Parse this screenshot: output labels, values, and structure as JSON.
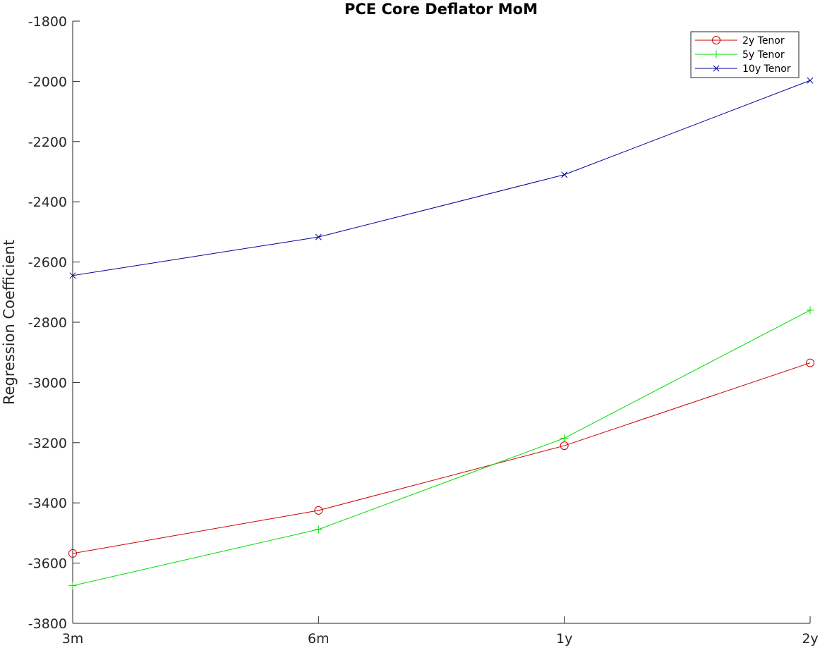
{
  "chart_data": {
    "type": "line",
    "title": "PCE Core Deflator MoM",
    "xlabel": "",
    "ylabel": "Regression Coefficient",
    "categories": [
      "3m",
      "6m",
      "1y",
      "2y"
    ],
    "ylim": [
      -3800,
      -1800
    ],
    "yticks": [
      -3800,
      -3600,
      -3400,
      -3200,
      -3000,
      -2800,
      -2600,
      -2400,
      -2200,
      -2000,
      -1800
    ],
    "grid": false,
    "legend": "top-right",
    "series": [
      {
        "name": "2y Tenor",
        "color": "#cc0000",
        "marker": "circle",
        "values": [
          -3568,
          -3425,
          -3210,
          -2935
        ]
      },
      {
        "name": "5y Tenor",
        "color": "#00dd00",
        "marker": "plus",
        "values": [
          -3675,
          -3488,
          -3185,
          -2760
        ]
      },
      {
        "name": "10y Tenor",
        "color": "#000099",
        "marker": "x",
        "values": [
          -2645,
          -2517,
          -2310,
          -1997
        ]
      }
    ]
  }
}
